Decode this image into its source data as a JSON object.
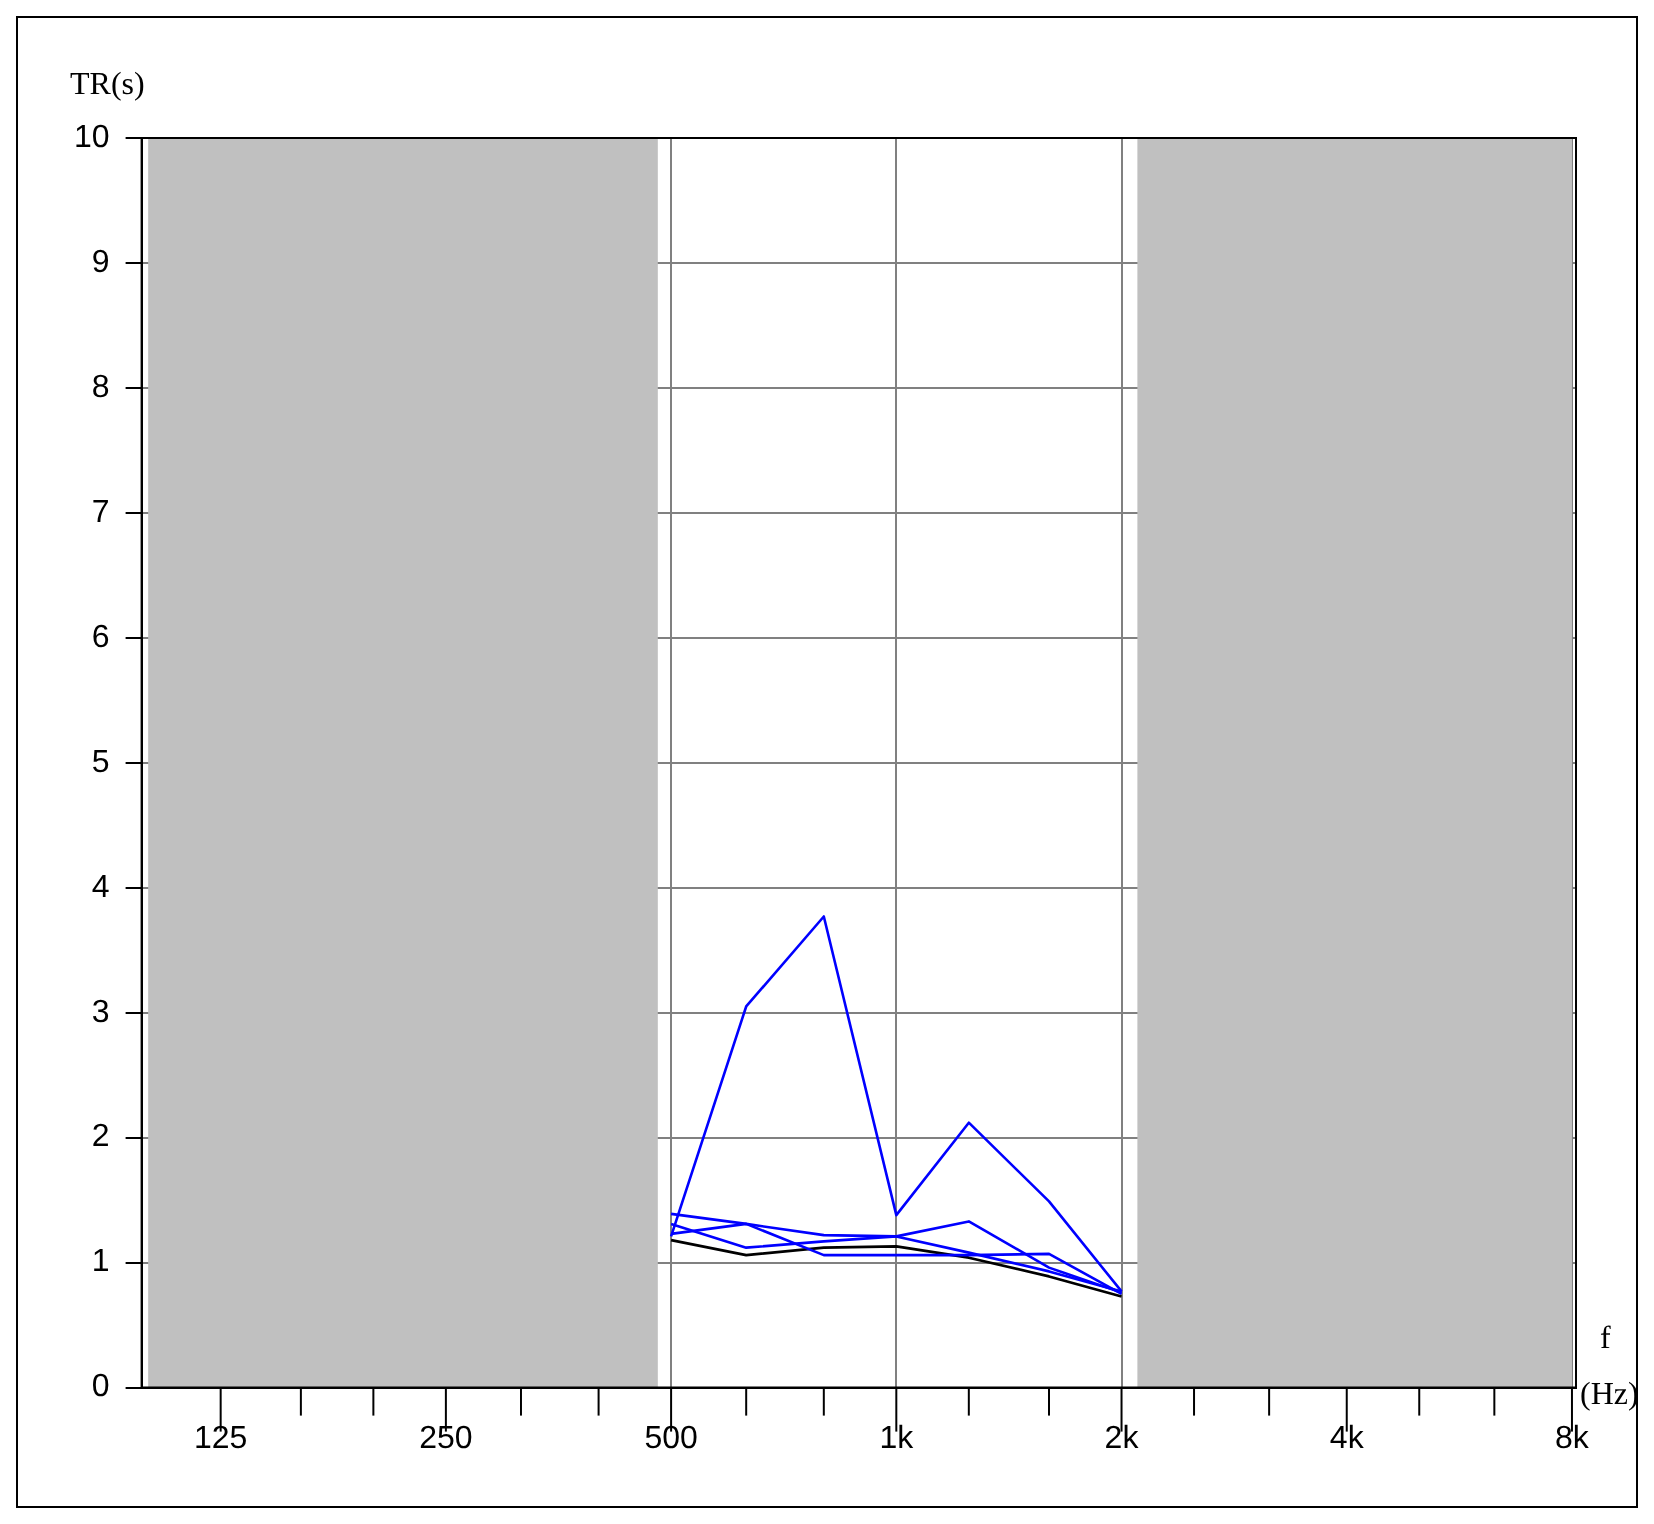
{
  "chart_data": {
    "type": "line",
    "ylabel": "TR(s)",
    "xlabel": "f (Hz)",
    "log": "x",
    "grid": true,
    "legend": false,
    "marker": "none",
    "line_style": "solid",
    "x": [
      500,
      630,
      800,
      1000,
      1250,
      1600,
      2000
    ],
    "series": [
      {
        "color": "#0000ff",
        "values": [
          1.21,
          3.05,
          3.77,
          1.38,
          2.12,
          1.49,
          0.77
        ]
      },
      {
        "color": "#0000ff",
        "values": [
          1.39,
          1.31,
          1.22,
          1.21,
          1.08,
          0.93,
          0.77
        ]
      },
      {
        "color": "#0000ff",
        "values": [
          1.31,
          1.12,
          1.17,
          1.21,
          1.33,
          0.96,
          0.76
        ]
      },
      {
        "color": "#0000ff",
        "values": [
          1.23,
          1.31,
          1.06,
          1.06,
          1.06,
          1.07,
          0.75
        ]
      },
      {
        "color": "#000000",
        "values": [
          1.18,
          1.06,
          1.12,
          1.13,
          1.04,
          0.89,
          0.73
        ]
      }
    ],
    "xlim": [
      98,
      8100
    ],
    "xticks": [
      {
        "value": 125,
        "label": "125"
      },
      {
        "value": 160,
        "label": null
      },
      {
        "value": 200,
        "label": null
      },
      {
        "value": 250,
        "label": "250"
      },
      {
        "value": 315,
        "label": null
      },
      {
        "value": 400,
        "label": null
      },
      {
        "value": 500,
        "label": "500"
      },
      {
        "value": 630,
        "label": null
      },
      {
        "value": 800,
        "label": null
      },
      {
        "value": 1000,
        "label": "1k"
      },
      {
        "value": 1250,
        "label": null
      },
      {
        "value": 1600,
        "label": null
      },
      {
        "value": 2000,
        "label": "2k"
      },
      {
        "value": 2500,
        "label": null
      },
      {
        "value": 3150,
        "label": null
      },
      {
        "value": 4000,
        "label": "4k"
      },
      {
        "value": 5000,
        "label": null
      },
      {
        "value": 6300,
        "label": null
      },
      {
        "value": 8000,
        "label": "8k"
      }
    ],
    "ylim": [
      0,
      10
    ],
    "yticks": [
      0,
      1,
      2,
      3,
      4,
      5,
      6,
      7,
      8,
      9,
      10
    ],
    "bands": [
      {
        "axis": "x",
        "from": 100,
        "to": 480,
        "color": "#c0c0c0"
      },
      {
        "axis": "x",
        "from": 2100,
        "to": 8000,
        "color": "#c0c0c0"
      }
    ]
  }
}
